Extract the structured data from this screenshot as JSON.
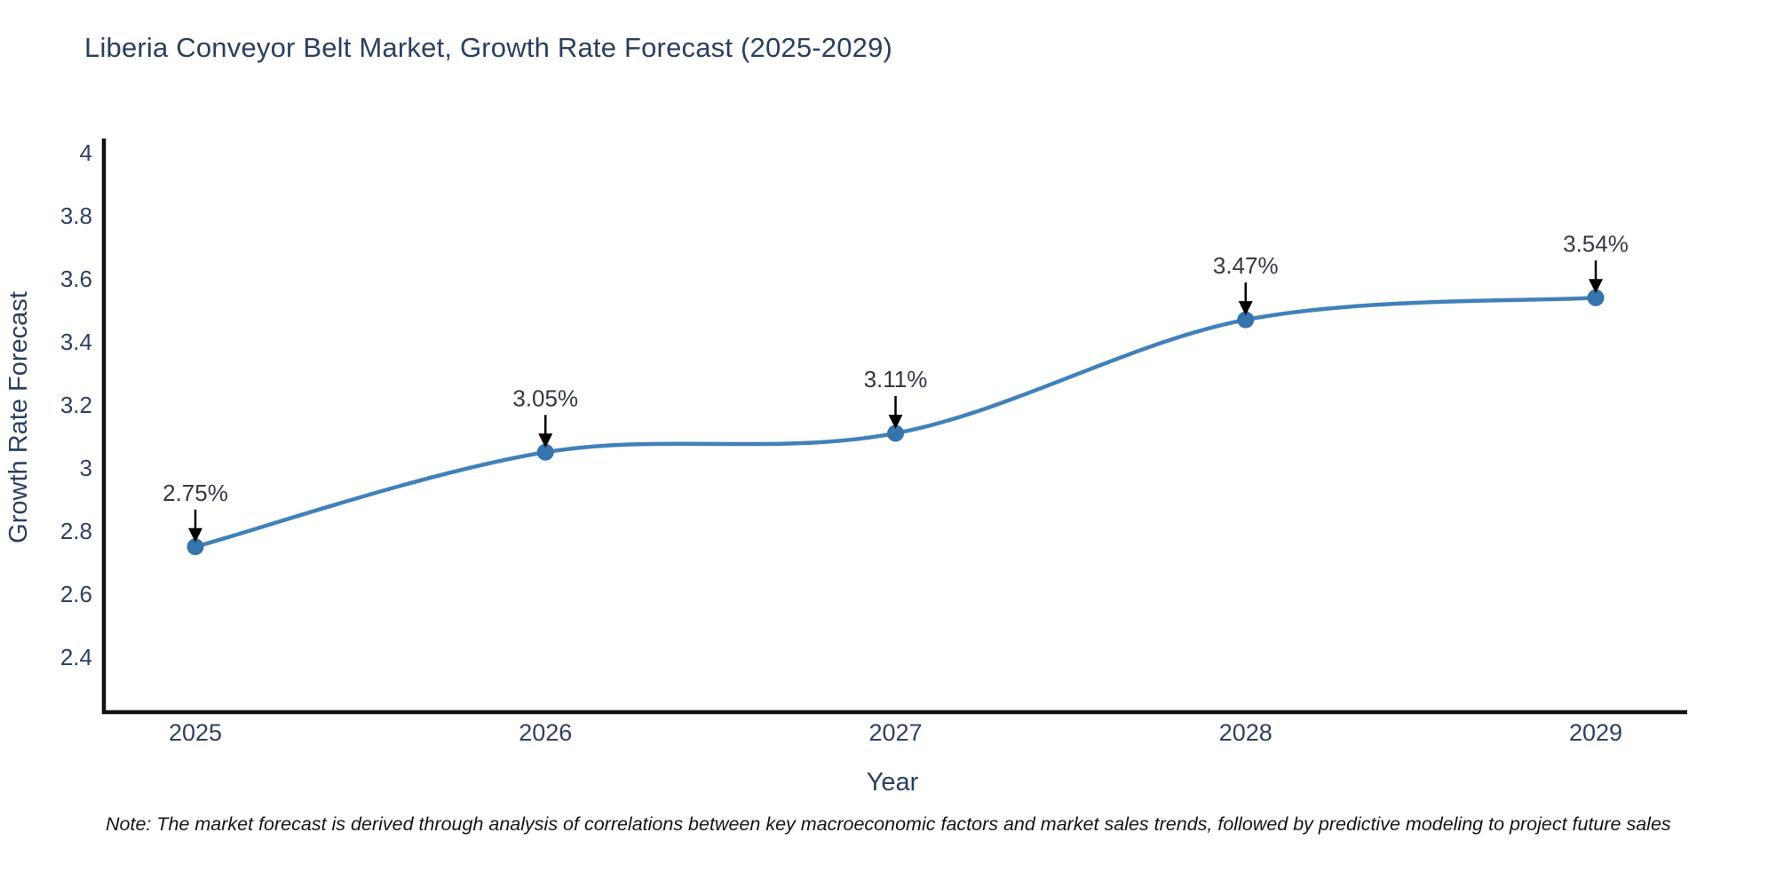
{
  "title": "Liberia Conveyor Belt Market, Growth Rate Forecast (2025-2029)",
  "note": "Note: The market forecast is derived through analysis of correlations between key macroeconomic factors and market sales trends, followed by predictive modeling to project future sales",
  "chart_data": {
    "type": "line",
    "title": "Liberia Conveyor Belt Market, Growth Rate Forecast (2025-2029)",
    "xlabel": "Year",
    "ylabel": "Growth Rate Forecast",
    "categories": [
      "2025",
      "2026",
      "2027",
      "2028",
      "2029"
    ],
    "series": [
      {
        "name": "Growth Rate Forecast",
        "values": [
          2.75,
          3.05,
          3.11,
          3.47,
          3.54
        ]
      }
    ],
    "point_labels": [
      "2.75%",
      "3.05%",
      "3.11%",
      "3.47%",
      "3.54%"
    ],
    "yticks": [
      2.4,
      2.6,
      2.8,
      3,
      3.2,
      3.4,
      3.6,
      3.8,
      4
    ],
    "ytick_labels": [
      "2.4",
      "2.6",
      "2.8",
      "3",
      "3.2",
      "3.4",
      "3.6",
      "3.8",
      "4"
    ],
    "ylim": [
      2.23,
      4.05
    ],
    "grid": false,
    "legend": "none",
    "line_shape": "spline",
    "colors": {
      "line": "#4181ba",
      "marker": "#3674ae",
      "axis": "#111111",
      "title_text": "#2a3f5f",
      "tick_text": "#2f415f",
      "annotation_text": "#333944",
      "annotation_arrow": "#000000",
      "note_text": "#10151d",
      "background": "#ffffff"
    }
  }
}
